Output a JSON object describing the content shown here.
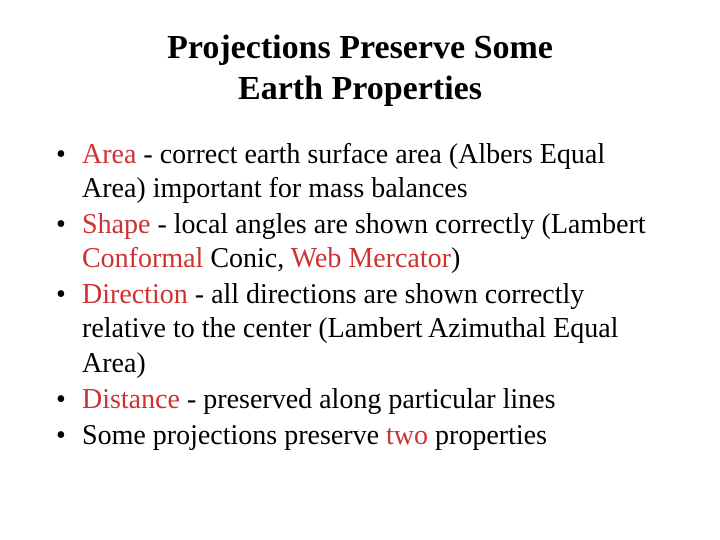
{
  "title_line1": "Projections Preserve Some",
  "title_line2": "Earth Properties",
  "colors": {
    "highlight": "#cd3333",
    "text": "#000000",
    "background": "#ffffff"
  },
  "bullets": [
    {
      "segments": [
        {
          "text": "Area",
          "highlight": true
        },
        {
          "text": " - correct earth surface area (Albers Equal Area) important for mass balances",
          "highlight": false
        }
      ]
    },
    {
      "segments": [
        {
          "text": "Shape",
          "highlight": true
        },
        {
          "text": " - local angles are shown correctly (Lambert ",
          "highlight": false
        },
        {
          "text": "Conformal",
          "highlight": true
        },
        {
          "text": " Conic, ",
          "highlight": false
        },
        {
          "text": "Web Mercator",
          "highlight": true
        },
        {
          "text": ")",
          "highlight": false
        }
      ]
    },
    {
      "segments": [
        {
          "text": "Direction",
          "highlight": true
        },
        {
          "text": " - all directions are shown correctly relative to the center (Lambert Azimuthal Equal Area)",
          "highlight": false
        }
      ]
    },
    {
      "segments": [
        {
          "text": "Distance",
          "highlight": true
        },
        {
          "text": " - preserved along particular lines",
          "highlight": false
        }
      ]
    },
    {
      "segments": [
        {
          "text": "Some projections preserve ",
          "highlight": false
        },
        {
          "text": "two",
          "highlight": true
        },
        {
          "text": " properties",
          "highlight": false
        }
      ]
    }
  ]
}
